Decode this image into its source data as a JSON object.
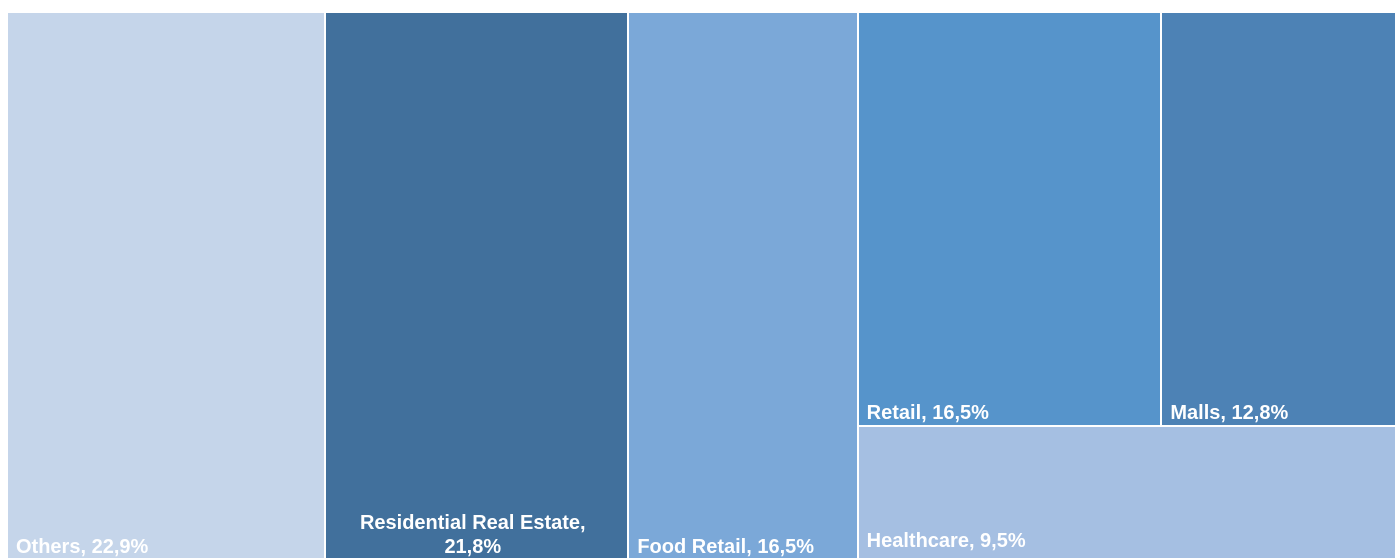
{
  "chart_data": {
    "type": "treemap",
    "values": [
      22.9,
      21.8,
      16.5,
      16.5,
      12.8,
      9.5
    ],
    "value_labels": [
      "Others, 22,9%",
      "Residential Real Estate, 21,8%",
      "Food Retail, 16,5%",
      "Retail, 16,5%",
      "Malls, 12,8%",
      "Healthcare, 9,5%"
    ],
    "colors": [
      "#c5d5ea",
      "#41709c",
      "#7ba8d8",
      "#5694cb",
      "#4d82b5",
      "#a5bfe2"
    ]
  }
}
